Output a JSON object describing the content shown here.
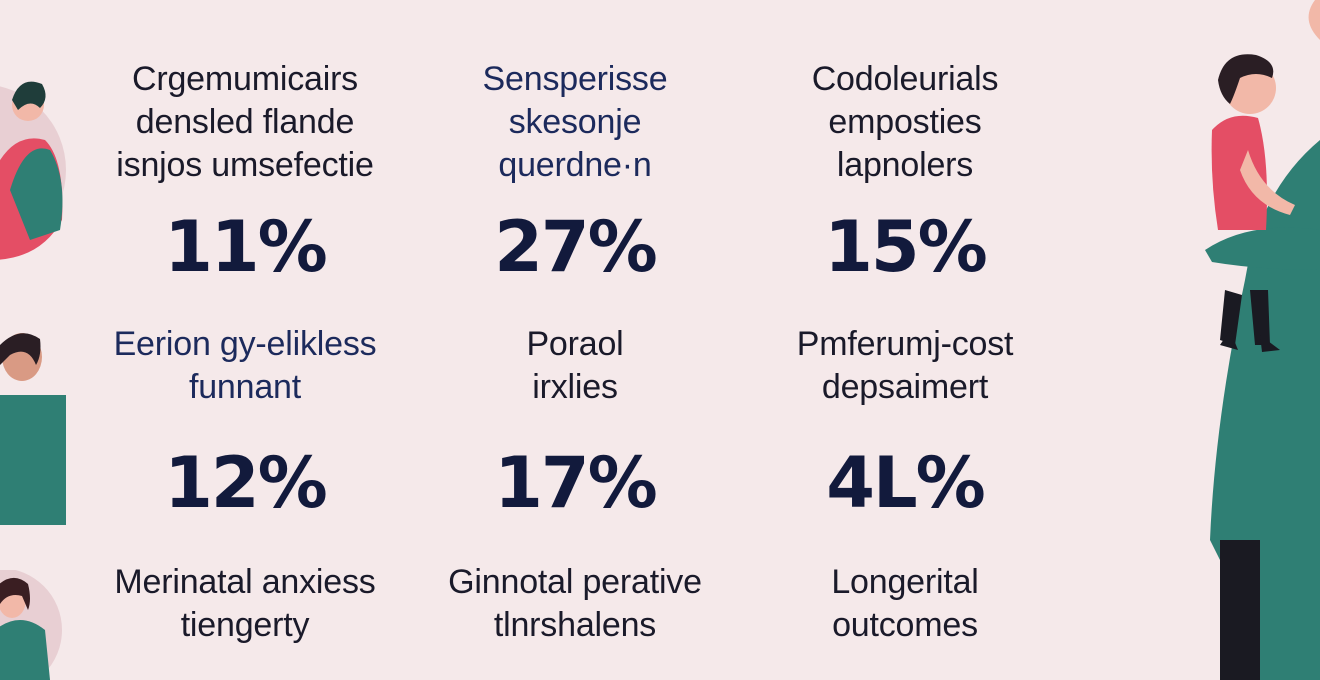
{
  "accent_teal": "#2f7f74",
  "accent_pink": "#e44e65",
  "illustrations": [
    "parent-hugging-child-icon",
    "person-icon",
    "woman-icon",
    "adult-carrying-child-illustration"
  ],
  "rows": [
    {
      "stats": [
        {
          "label": "Crgemumicairs\ndensled flande\nisnjos umsefectie",
          "value": "11%"
        },
        {
          "label": "Sensperisse\nskesonje\nquerdne·n",
          "value": "27%"
        },
        {
          "label": "Codoleurials\nemposties\nlapnolers",
          "value": "15%"
        }
      ]
    },
    {
      "stats": [
        {
          "label": "Eerion gy-elikless\nfunnant",
          "value": "12%"
        },
        {
          "label": "Poraol\nirxlies",
          "value": "17%"
        },
        {
          "label": "Pmferumj-cost\ndepsaimert",
          "value": "4L%"
        }
      ]
    },
    {
      "stats": [
        {
          "label": "Merinatal anxiess\ntiengerty",
          "value": ""
        },
        {
          "label": "Ginnotal perative\ntlnrshalens",
          "value": ""
        },
        {
          "label": "Longerital\noutcomes",
          "value": ""
        }
      ]
    }
  ]
}
